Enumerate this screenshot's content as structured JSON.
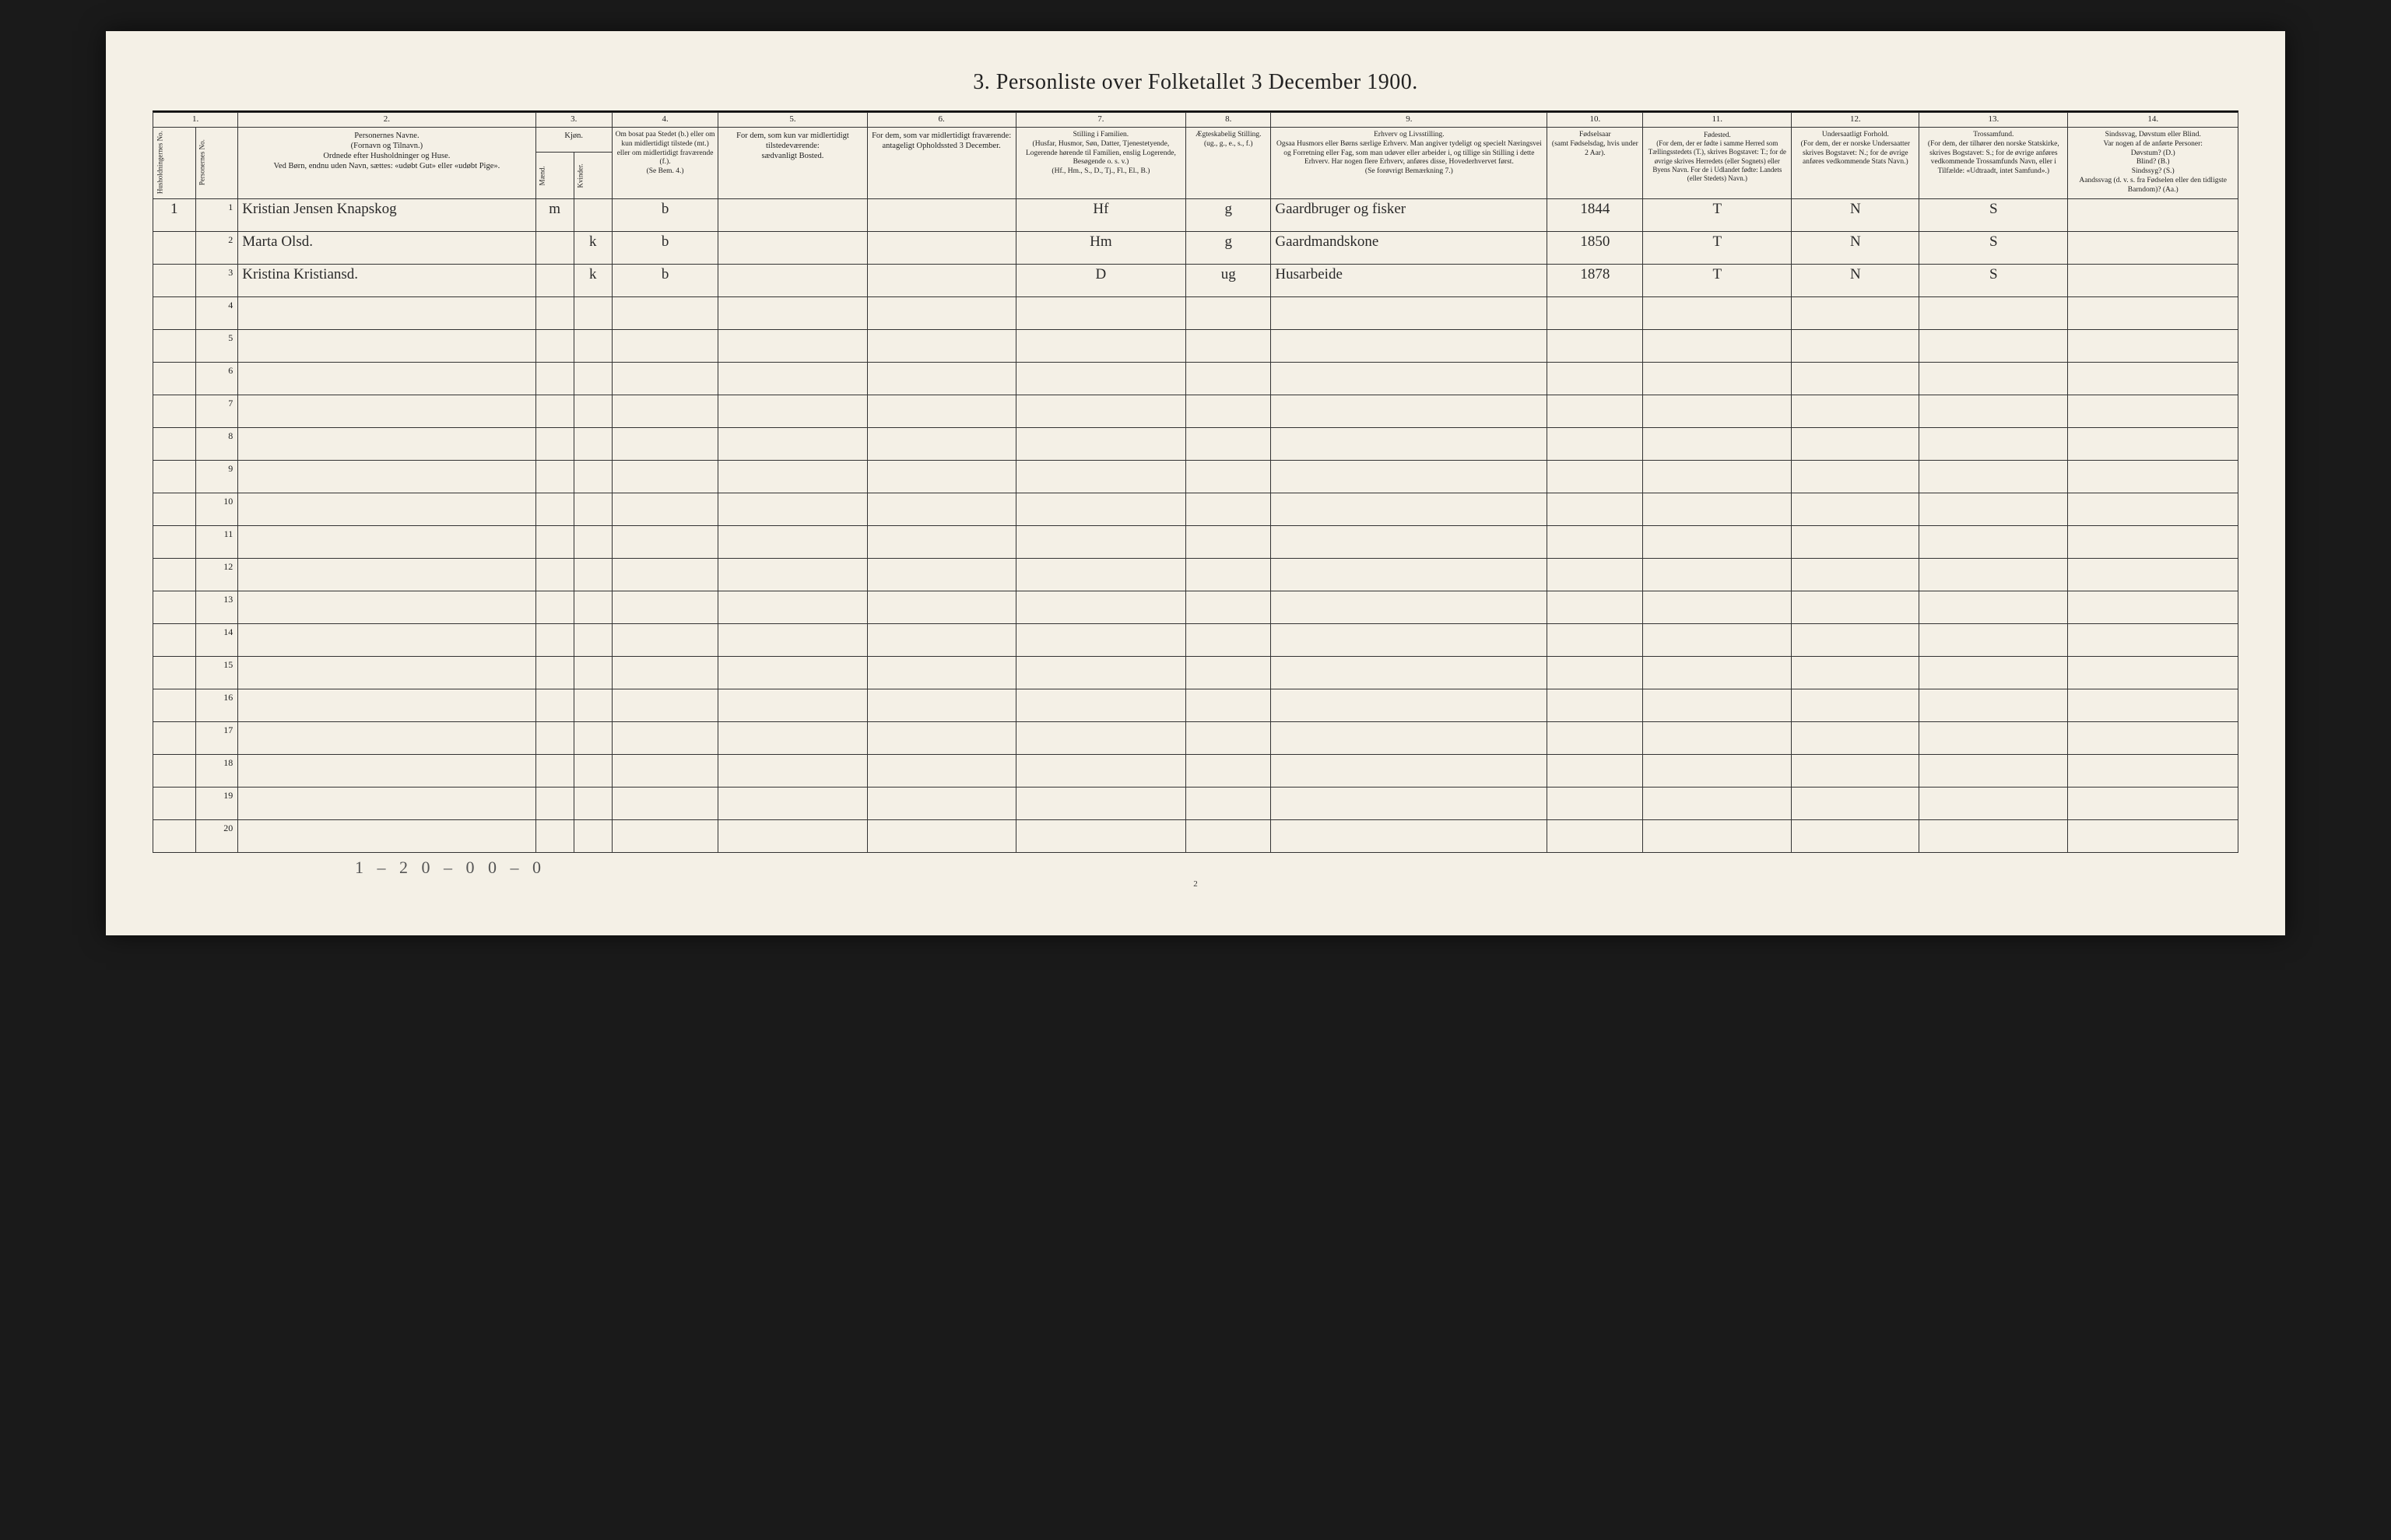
{
  "document": {
    "title": "3. Personliste over Folketallet 3 December 1900.",
    "page_footer_number": "2",
    "footer_handwritten": "1 – 2     0 – 0     0 – 0",
    "background_color": "#f4f0e6",
    "ink_color": "#222222",
    "handwriting_color": "#2a2a2a"
  },
  "columns": {
    "nums": [
      "1.",
      "",
      "2.",
      "3.",
      "4.",
      "5.",
      "6.",
      "7.",
      "8.",
      "9.",
      "10.",
      "11.",
      "12.",
      "13.",
      "14."
    ],
    "c1": "Husholdningernes No.",
    "c1b": "Personernes No.",
    "c2": "Personernes Navne.\n(Fornavn og Tilnavn.)\nOrdnede efter Husholdninger og Huse.\nVed Børn, endnu uden Navn, sættes: «udøbt Gut» eller «udøbt Pige».",
    "c3_header": "Kjøn.",
    "c3a": "Mænd.",
    "c3b": "Kvinder.",
    "c3_sub": "m.  k.",
    "c4": "Om bosat paa Stedet (b.) eller om kun midlertidigt tilstede (mt.) eller om midlertidigt fraværende (f.).\n(Se Bem. 4.)",
    "c5": "For dem, som kun var midlertidigt tilstedeværende:\nsædvanligt Bosted.",
    "c6": "For dem, som var midlertidigt fraværende:\nantageligt Opholdssted 3 December.",
    "c7": "Stilling i Familien.\n(Husfar, Husmor, Søn, Datter, Tjenestetyende, Logerende hørende til Familien, enslig Logerende, Besøgende o. s. v.)\n(Hf., Hm., S., D., Tj., Fl., El., B.)",
    "c8": "Ægteskabelig Stilling.\n(ug., g., e., s., f.)",
    "c9": "Erhverv og Livsstilling.\nOgsaa Husmors eller Børns særlige Erhverv. Man angiver tydeligt og specielt Næringsvei og Forretning eller Fag, som man udøver eller arbeider i, og tillige sin Stilling i dette Erhverv. Har nogen flere Erhverv, anføres disse, Hovederhvervet først.\n(Se forøvrigt Bemærkning 7.)",
    "c10": "Fødselsaar\n(samt Fødselsdag, hvis under 2 Aar).",
    "c11": "Fødested.\n(For dem, der er fødte i samme Herred som Tællingsstedets (T.), skrives Bogstavet: T.; for de øvrige skrives Herredets (eller Sognets) eller Byens Navn. For de i Udlandet fødte: Landets (eller Stedets) Navn.)",
    "c12": "Undersaatligt Forhold.\n(For dem, der er norske Undersaatter skrives Bogstavet: N.; for de øvrige anføres vedkommende Stats Navn.)",
    "c13": "Trossamfund.\n(For dem, der tilhører den norske Statskirke, skrives Bogstavet: S.; for de øvrige anføres vedkommende Trossamfunds Navn, eller i Tilfælde: «Udtraadt, intet Samfund».)",
    "c14": "Sindssvag, Døvstum eller Blind.\nVar nogen af de anførte Personer:\nDøvstum? (D.)\nBlind? (B.)\nSindssyg? (S.)\nAandssvag (d. v. s. fra Fødselen eller den tidligste Barndom)? (Aa.)"
  },
  "rows": [
    {
      "hh": "1",
      "pn": "1",
      "name": "Kristian Jensen Knapskog",
      "sex_m": "m",
      "sex_k": "",
      "bosat": "b",
      "c5": "",
      "c6": "",
      "family": "Hf",
      "marital": "g",
      "occupation": "Gaardbruger og fisker",
      "birthyear": "1844",
      "birthplace": "T",
      "nationality": "N",
      "faith": "S",
      "c14": ""
    },
    {
      "hh": "",
      "pn": "2",
      "name": "Marta Olsd.",
      "sex_m": "",
      "sex_k": "k",
      "bosat": "b",
      "c5": "",
      "c6": "",
      "family": "Hm",
      "marital": "g",
      "occupation": "Gaardmandskone",
      "birthyear": "1850",
      "birthplace": "T",
      "nationality": "N",
      "faith": "S",
      "c14": ""
    },
    {
      "hh": "",
      "pn": "3",
      "name": "Kristina Kristiansd.",
      "sex_m": "",
      "sex_k": "k",
      "bosat": "b",
      "c5": "",
      "c6": "",
      "family": "D",
      "marital": "ug",
      "occupation": "Husarbeide",
      "birthyear": "1878",
      "birthplace": "T",
      "nationality": "N",
      "faith": "S",
      "c14": ""
    }
  ],
  "blank_row_count": 17
}
